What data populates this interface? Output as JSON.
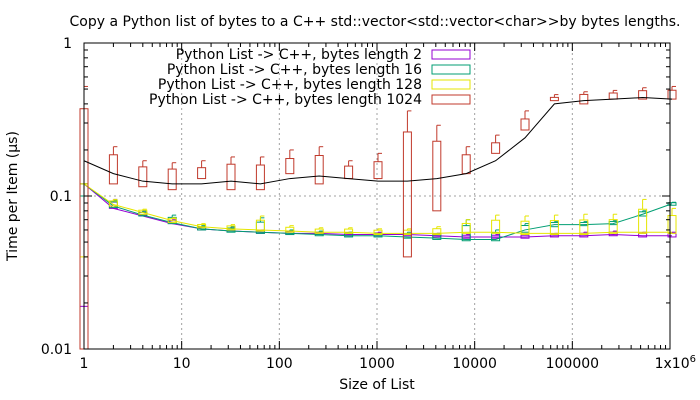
{
  "chart_data": {
    "type": "line",
    "title": "Copy a Python list of bytes to a C++ std::vector<std::vector<char>>by bytes lengths.",
    "xlabel": "Size of List",
    "ylabel": "Time per Item (µs)",
    "xscale": "log",
    "yscale": "log",
    "xlim": [
      1,
      1000000
    ],
    "ylim": [
      0.01,
      1
    ],
    "grid": true,
    "legend_position": "top-left",
    "x_ticks": [
      1,
      10,
      100,
      1000,
      10000,
      100000,
      1000000
    ],
    "x_tick_labels": [
      "1",
      "10",
      "100",
      "1000",
      "10000",
      "100000",
      "1x10^6"
    ],
    "y_ticks": [
      0.01,
      0.1,
      1
    ],
    "y_tick_labels": [
      "0.01",
      "0.1",
      "1"
    ],
    "x": [
      1,
      2,
      4,
      8,
      16,
      32,
      64,
      128,
      256,
      512,
      1024,
      2048,
      4096,
      8192,
      16384,
      32768,
      65536,
      131072,
      262144,
      524288,
      1048576
    ],
    "series": [
      {
        "name": "Python List -> C++, bytes length 2",
        "color": "#9400d3",
        "line": [
          0.12,
          0.083,
          0.074,
          0.066,
          0.061,
          0.059,
          0.058,
          0.057,
          0.057,
          0.056,
          0.056,
          0.056,
          0.055,
          0.054,
          0.054,
          0.054,
          0.055,
          0.055,
          0.056,
          0.055,
          0.055
        ],
        "box_low": [
          0.019,
          0.083,
          0.075,
          0.066,
          0.06,
          0.059,
          0.057,
          0.056,
          0.056,
          0.055,
          0.055,
          0.055,
          0.054,
          0.053,
          0.053,
          0.053,
          0.054,
          0.054,
          0.055,
          0.054,
          0.054
        ],
        "box_high": [
          0.12,
          0.095,
          0.08,
          0.07,
          0.063,
          0.062,
          0.06,
          0.059,
          0.058,
          0.058,
          0.058,
          0.057,
          0.057,
          0.056,
          0.056,
          0.056,
          0.057,
          0.058,
          0.059,
          0.058,
          0.058
        ]
      },
      {
        "name": "Python List -> C++, bytes length 16",
        "color": "#009e73",
        "line": [
          0.12,
          0.086,
          0.075,
          0.067,
          0.061,
          0.059,
          0.058,
          0.057,
          0.056,
          0.055,
          0.055,
          0.054,
          0.053,
          0.052,
          0.052,
          0.06,
          0.065,
          0.065,
          0.066,
          0.076,
          0.089
        ],
        "box_low": [
          0.1,
          0.084,
          0.074,
          0.066,
          0.06,
          0.058,
          0.057,
          0.056,
          0.055,
          0.054,
          0.054,
          0.053,
          0.052,
          0.051,
          0.051,
          0.058,
          0.063,
          0.064,
          0.065,
          0.074,
          0.087
        ],
        "box_high": [
          0.12,
          0.094,
          0.08,
          0.075,
          0.064,
          0.063,
          0.072,
          0.06,
          0.059,
          0.058,
          0.057,
          0.058,
          0.057,
          0.07,
          0.06,
          0.066,
          0.068,
          0.068,
          0.069,
          0.08,
          0.091
        ]
      },
      {
        "name": "Python List -> C++, bytes length 128",
        "color": "#e6e600",
        "line": [
          0.12,
          0.088,
          0.078,
          0.069,
          0.063,
          0.061,
          0.06,
          0.059,
          0.058,
          0.058,
          0.057,
          0.057,
          0.057,
          0.058,
          0.058,
          0.057,
          0.057,
          0.057,
          0.058,
          0.058,
          0.058
        ],
        "box_low": [
          0.04,
          0.086,
          0.076,
          0.067,
          0.062,
          0.06,
          0.059,
          0.058,
          0.057,
          0.057,
          0.056,
          0.056,
          0.056,
          0.057,
          0.057,
          0.056,
          0.056,
          0.056,
          0.057,
          0.057,
          0.057
        ],
        "box_high": [
          0.12,
          0.095,
          0.082,
          0.072,
          0.066,
          0.065,
          0.074,
          0.064,
          0.062,
          0.062,
          0.061,
          0.061,
          0.063,
          0.07,
          0.075,
          0.074,
          0.075,
          0.076,
          0.076,
          0.095,
          0.083
        ]
      },
      {
        "name": "Python List -> C++, bytes length 1024",
        "color": "#c0392b",
        "line": [
          0.17,
          0.14,
          0.125,
          0.12,
          0.12,
          0.125,
          0.12,
          0.13,
          0.135,
          0.13,
          0.125,
          0.125,
          0.13,
          0.14,
          0.17,
          0.24,
          0.4,
          0.42,
          0.43,
          0.44,
          0.43
        ],
        "box_low": [
          0.01,
          0.12,
          0.115,
          0.11,
          0.13,
          0.11,
          0.11,
          0.14,
          0.12,
          0.13,
          0.13,
          0.04,
          0.08,
          0.14,
          0.19,
          0.27,
          0.42,
          0.4,
          0.43,
          0.43,
          0.43
        ],
        "box_high": [
          0.52,
          0.21,
          0.17,
          0.165,
          0.17,
          0.18,
          0.18,
          0.2,
          0.21,
          0.17,
          0.19,
          0.36,
          0.29,
          0.21,
          0.25,
          0.36,
          0.46,
          0.48,
          0.49,
          0.51,
          0.52
        ]
      }
    ]
  }
}
